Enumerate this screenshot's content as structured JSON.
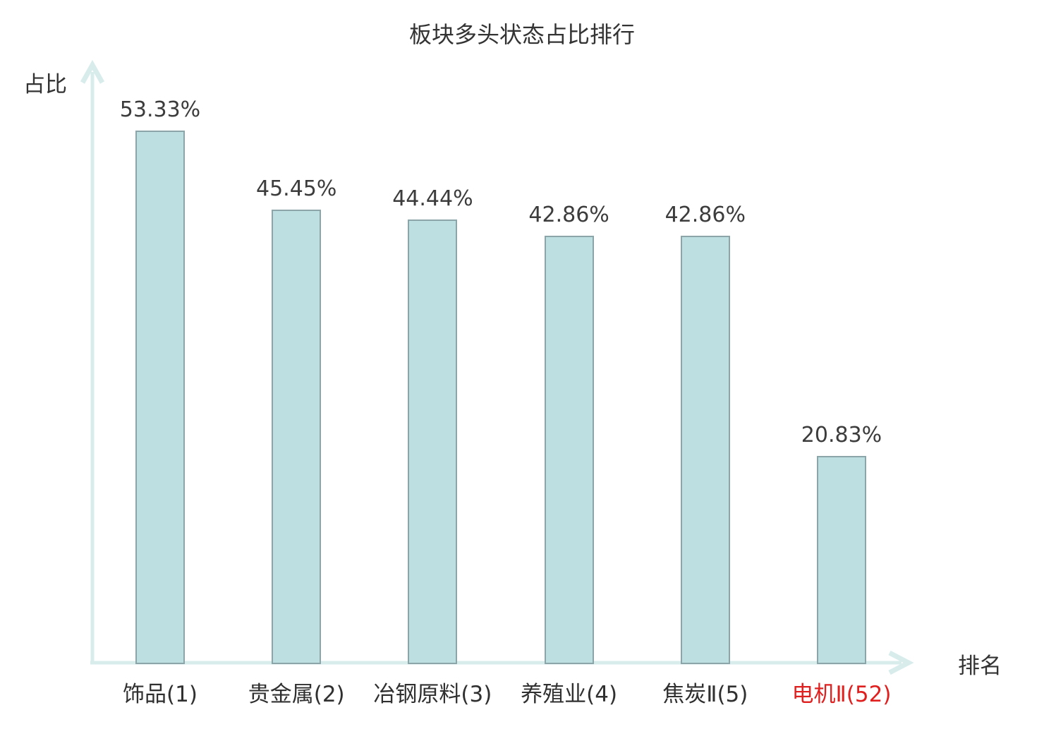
{
  "chart_data": {
    "type": "bar",
    "title": "板块多头状态占比排行",
    "xlabel": "排名",
    "ylabel": "占比",
    "categories": [
      "饰品(1)",
      "贵金属(2)",
      "冶钢原料(3)",
      "养殖业(4)",
      "焦炭Ⅱ(5)",
      "电机Ⅱ(52)"
    ],
    "values": [
      53.33,
      45.45,
      44.44,
      42.86,
      42.86,
      20.83
    ],
    "value_labels": [
      "53.33%",
      "45.45%",
      "44.44%",
      "42.86%",
      "42.86%",
      "20.83%"
    ],
    "highlight_index": 5,
    "ylim": [
      0,
      60
    ],
    "grid": false,
    "legend": null,
    "colors": {
      "bar_fill": "#bedfe2",
      "bar_border": "#8ca5a8",
      "axis": "#d8ecec",
      "text": "#3c3c3c",
      "highlight_text": "#e01f1f"
    }
  }
}
